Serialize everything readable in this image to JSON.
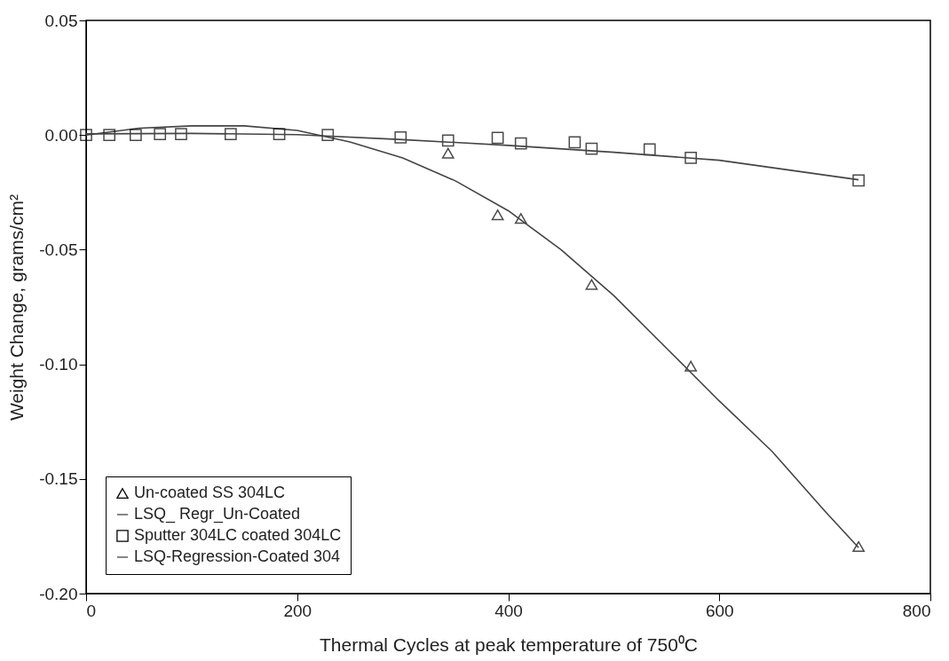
{
  "chart_data": {
    "type": "scatter",
    "xlabel": "Thermal Cycles at peak temperature of 750⁰C",
    "ylabel": "Weight Change, grams/cm²",
    "xlim": [
      0,
      800
    ],
    "xticks": [
      0,
      200,
      400,
      600,
      800
    ],
    "ylim": [
      -0.2,
      0.05
    ],
    "yticks": [
      {
        "value": -0.2,
        "label": "-0.20"
      },
      {
        "value": -0.15,
        "label": "-0.15"
      },
      {
        "value": -0.1,
        "label": "-0.10"
      },
      {
        "value": -0.05,
        "label": "-0.05"
      },
      {
        "value": 0,
        "label": "0.00"
      },
      {
        "value": 0.05,
        "label": "0.05"
      }
    ],
    "grid": false,
    "legend": "bottom left",
    "series": [
      {
        "name": "Un-coated SS 304LC",
        "marker": "triangle",
        "color": "#000000",
        "x": [
          343,
          390,
          412,
          479,
          573,
          732
        ],
        "values": [
          -0.0079,
          -0.0348,
          -0.0364,
          -0.0652,
          -0.1008,
          -0.1795
        ]
      },
      {
        "name": "LSQ_ Regr_Un-Coated",
        "type": "line",
        "line_style": "solid",
        "color": "#444444",
        "x": [
          0,
          50,
          100,
          150,
          200,
          250,
          300,
          350,
          400,
          450,
          500,
          550,
          600,
          650,
          700,
          732
        ],
        "values": [
          0,
          0.003,
          0.004,
          0.004,
          0.002,
          -0.003,
          -0.01,
          -0.02,
          -0.033,
          -0.05,
          -0.07,
          -0.093,
          -0.116,
          -0.138,
          -0.164,
          -0.18
        ]
      },
      {
        "name": "Sputter 304LC coated 304LC",
        "marker": "square",
        "color": "#000000",
        "x": [
          0,
          22,
          47,
          70,
          90,
          137,
          183,
          229,
          298,
          343,
          390,
          412,
          463,
          479,
          534,
          573,
          732
        ],
        "values": [
          0,
          0,
          0,
          0.0004,
          0.0004,
          0.0004,
          0.0004,
          0,
          -0.001,
          -0.0024,
          -0.0012,
          -0.0036,
          -0.0032,
          -0.006,
          -0.0063,
          -0.0099,
          -0.0198
        ]
      },
      {
        "name": "LSQ-Regression-Coated 304",
        "type": "line",
        "line_style": "solid",
        "color": "#444444",
        "x": [
          0,
          100,
          200,
          300,
          400,
          500,
          600,
          732
        ],
        "values": [
          0.0005,
          0.0007,
          0.0002,
          -0.002,
          -0.0045,
          -0.0075,
          -0.011,
          -0.0195
        ]
      }
    ]
  }
}
